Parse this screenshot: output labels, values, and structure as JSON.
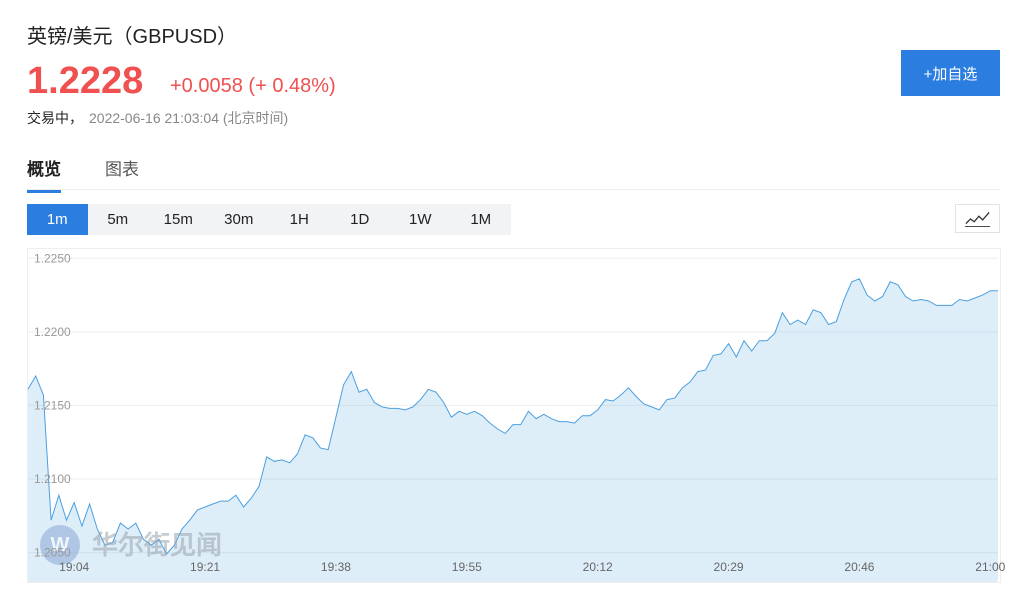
{
  "header": {
    "title": "英镑/美元（GBPUSD）",
    "price": "1.2228",
    "change": "+0.0058",
    "change_pct": "(+ 0.48%)",
    "status": "交易中，",
    "timestamp": "2022-06-16 21:03:04 (北京时间)"
  },
  "add_button": "+加自选",
  "tabs": [
    "概览",
    "图表"
  ],
  "intervals": [
    "1m",
    "5m",
    "15m",
    "30m",
    "1H",
    "1D",
    "1W",
    "1M"
  ],
  "watermark": "华尔街见闻",
  "chart_data": {
    "type": "area",
    "color": "#4a9fe0",
    "ylim": [
      1.203,
      1.2257
    ],
    "yticks": [
      {
        "value": 1.225,
        "label": "1.2250"
      },
      {
        "value": 1.22,
        "label": "1.2200"
      },
      {
        "value": 1.215,
        "label": "1.2150"
      },
      {
        "value": 1.21,
        "label": "1.2100"
      },
      {
        "value": 1.205,
        "label": "1.2050"
      }
    ],
    "grid": true,
    "categories": [
      null,
      null,
      null,
      null,
      null,
      null,
      "19:04",
      null,
      null,
      null,
      null,
      null,
      null,
      null,
      null,
      null,
      null,
      null,
      null,
      null,
      null,
      null,
      null,
      "19:21",
      null,
      null,
      null,
      null,
      null,
      null,
      null,
      null,
      null,
      null,
      null,
      null,
      null,
      null,
      null,
      null,
      "19:38",
      null,
      null,
      null,
      null,
      null,
      null,
      null,
      null,
      null,
      null,
      null,
      null,
      null,
      null,
      null,
      null,
      "19:55",
      null,
      null,
      null,
      null,
      null,
      null,
      null,
      null,
      null,
      null,
      null,
      null,
      null,
      null,
      null,
      null,
      "20:12",
      null,
      null,
      null,
      null,
      null,
      null,
      null,
      null,
      null,
      null,
      null,
      null,
      null,
      null,
      null,
      null,
      "20:29",
      null,
      null,
      null,
      null,
      null,
      null,
      null,
      null,
      null,
      null,
      null,
      null,
      null,
      null,
      null,
      null,
      "20:46",
      null,
      null,
      null,
      null,
      null,
      null,
      null,
      null,
      null,
      null,
      null,
      null,
      null,
      null,
      null,
      null,
      "21:00",
      null
    ],
    "values": [
      1.2161,
      1.217,
      1.2157,
      1.2072,
      1.2089,
      1.2072,
      1.2084,
      1.2068,
      1.2083,
      1.2066,
      1.2055,
      1.2057,
      1.207,
      1.2066,
      1.207,
      1.2059,
      1.2055,
      1.2059,
      1.2049,
      1.2055,
      1.2066,
      1.2072,
      1.2079,
      1.2081,
      1.2083,
      1.2085,
      1.2085,
      1.2089,
      1.2081,
      1.2087,
      1.2095,
      1.2115,
      1.2112,
      1.2113,
      1.2111,
      1.2117,
      1.213,
      1.2128,
      1.2121,
      1.212,
      1.2142,
      1.2164,
      1.2173,
      1.2159,
      1.2161,
      1.2152,
      1.2149,
      1.2148,
      1.2148,
      1.2147,
      1.2149,
      1.2154,
      1.2161,
      1.2159,
      1.2152,
      1.2142,
      1.2146,
      1.2144,
      1.2146,
      1.2143,
      1.2138,
      1.2134,
      1.2131,
      1.2137,
      1.2137,
      1.2146,
      1.2141,
      1.2144,
      1.2141,
      1.2139,
      1.2139,
      1.2138,
      1.2143,
      1.2143,
      1.2147,
      1.2154,
      1.2153,
      1.2157,
      1.2162,
      1.2156,
      1.2151,
      1.2149,
      1.2147,
      1.2154,
      1.2155,
      1.2162,
      1.2166,
      1.2173,
      1.2174,
      1.2184,
      1.2185,
      1.2192,
      1.2183,
      1.2194,
      1.2187,
      1.2194,
      1.2194,
      1.2199,
      1.2213,
      1.2205,
      1.2208,
      1.2205,
      1.2215,
      1.2213,
      1.2205,
      1.2207,
      1.2222,
      1.2234,
      1.2236,
      1.2225,
      1.2221,
      1.2224,
      1.2234,
      1.2232,
      1.2224,
      1.2221,
      1.2222,
      1.2221,
      1.2218,
      1.2218,
      1.2218,
      1.2222,
      1.2221,
      1.2223,
      1.2225,
      1.2228,
      1.2228
    ]
  }
}
